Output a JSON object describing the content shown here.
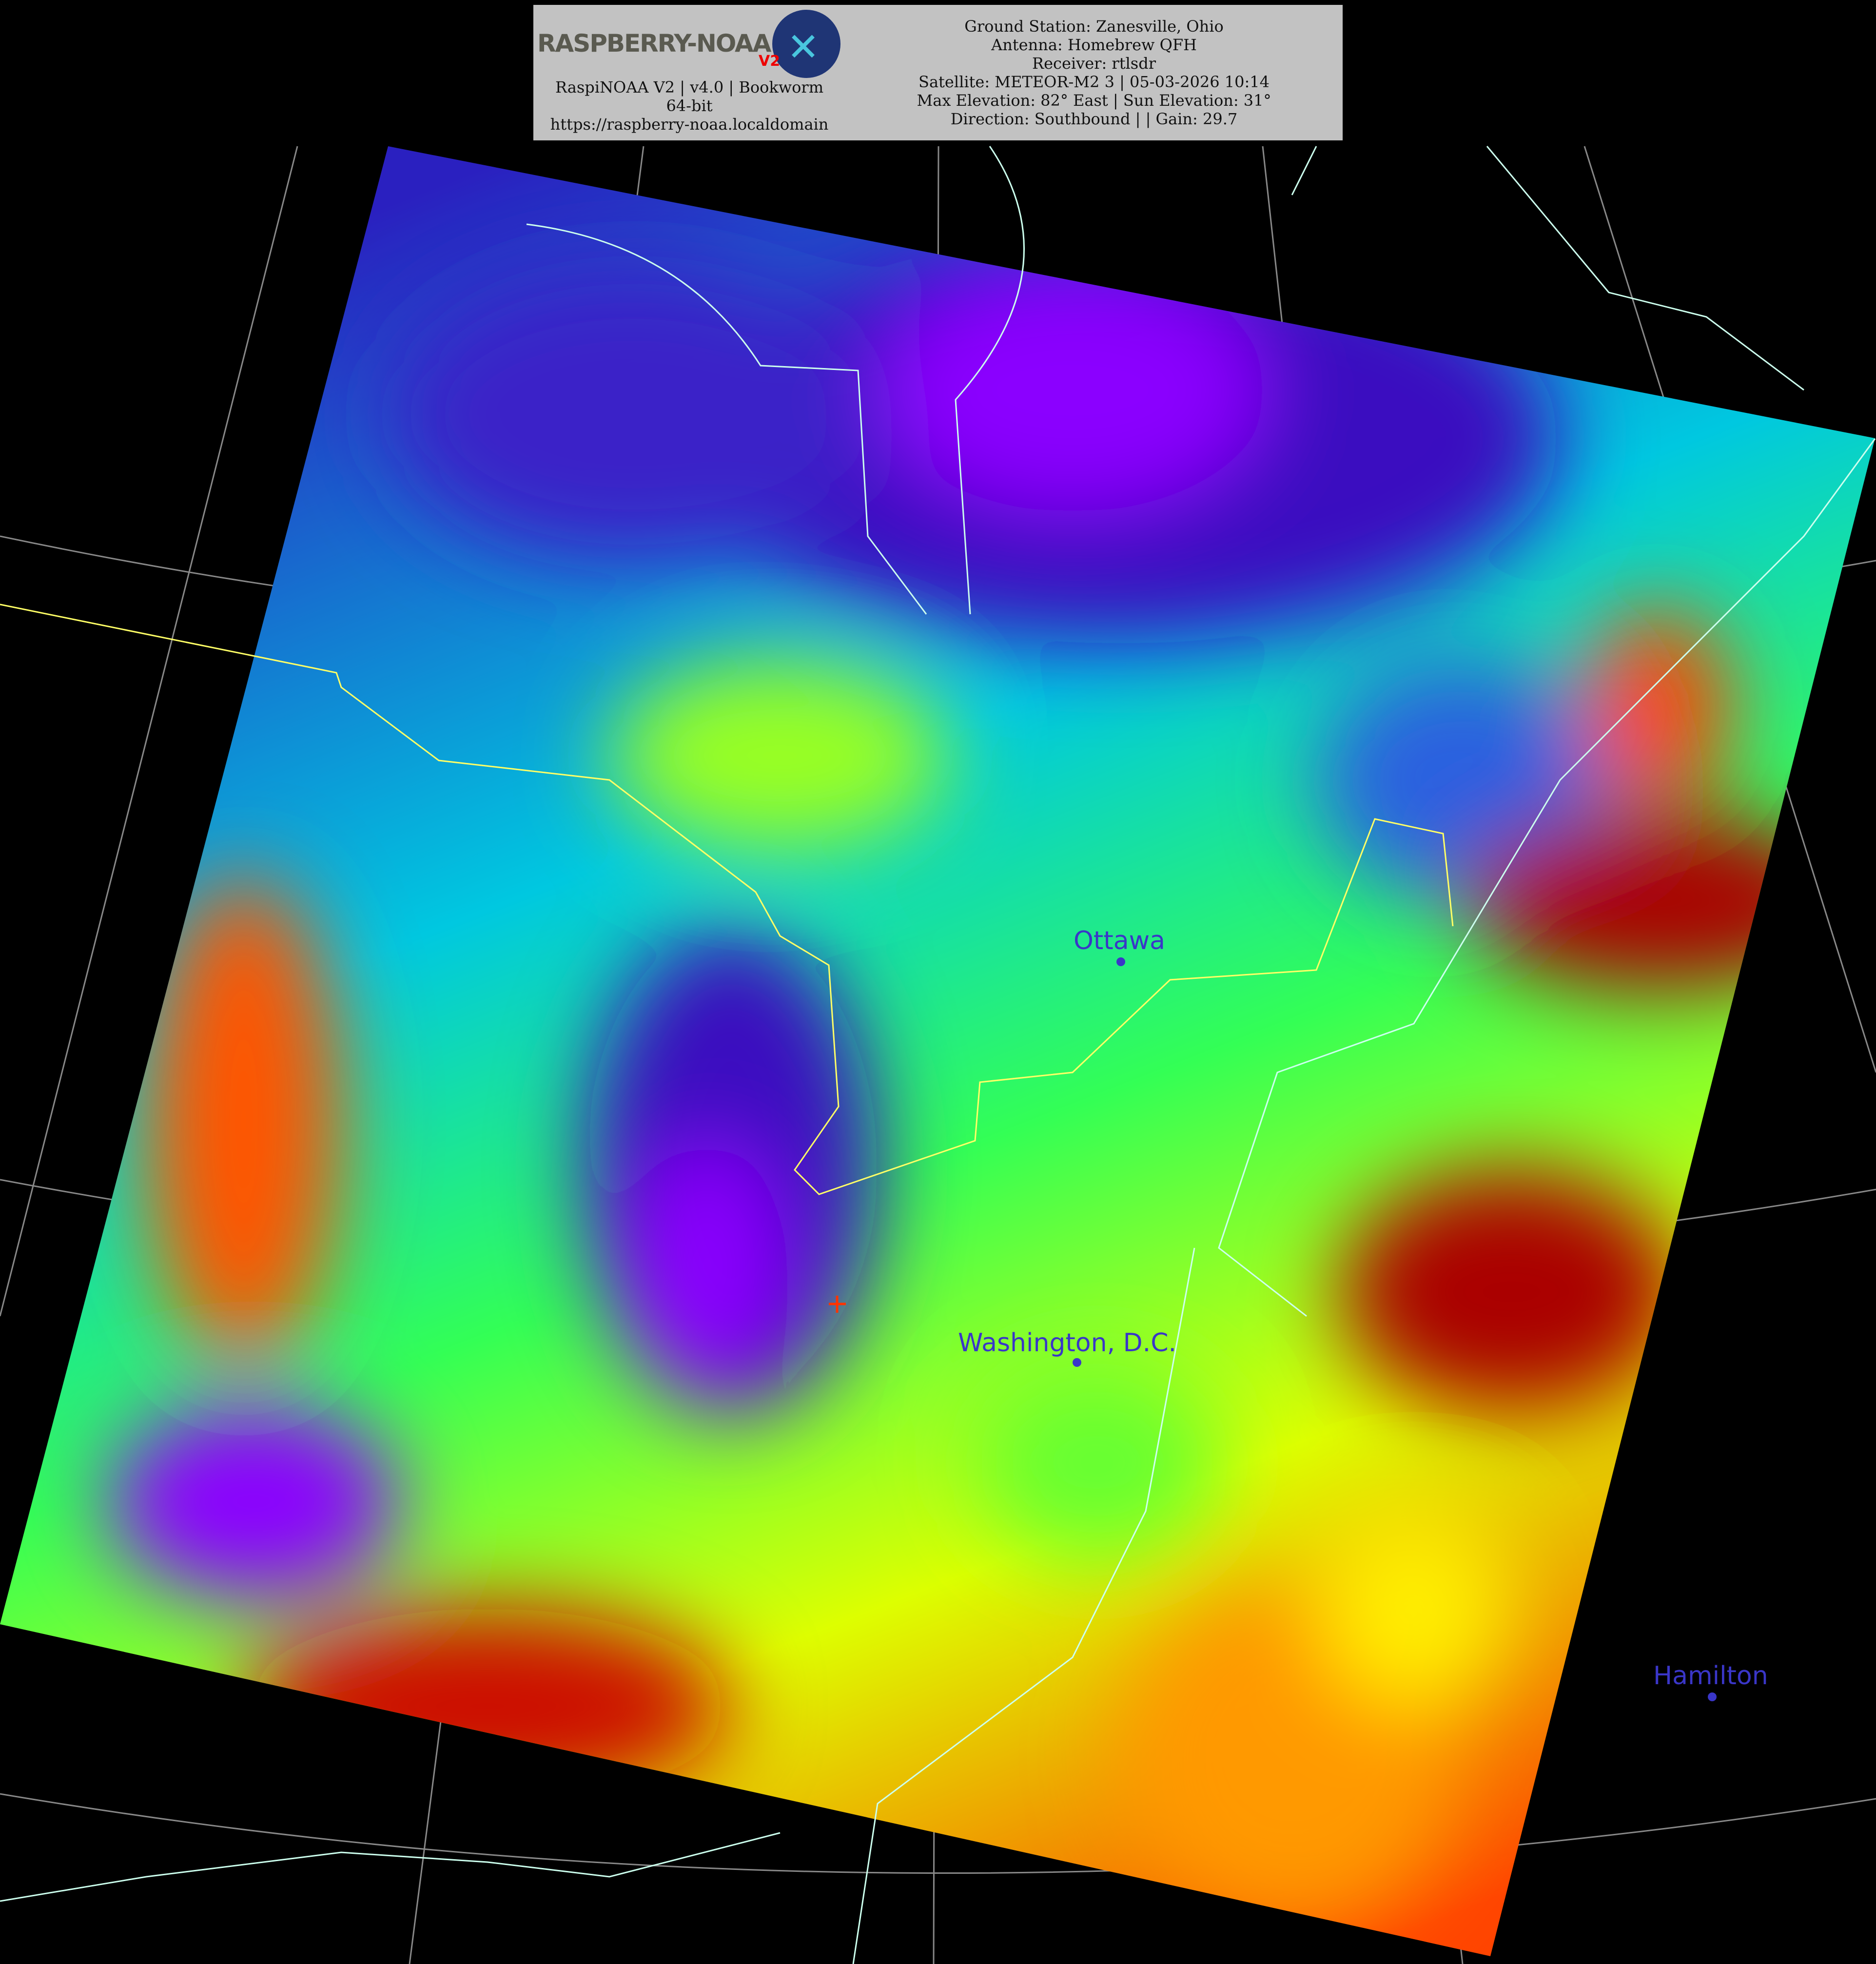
{
  "header": {
    "logo_text": "RASPBERRY-NOAA",
    "logo_badge": "V2",
    "app_line": "RaspiNOAA V2 | v4.0 | Bookworm 64-bit",
    "url": "https://raspberry-noaa.localdomain",
    "ground_station": "Ground Station: Zanesville, Ohio",
    "antenna": "Antenna: Homebrew QFH",
    "receiver": "Receiver: rtlsdr",
    "satellite": "Satellite: METEOR-M2 3 | 05-03-2026 10:14",
    "elevation": "Max Elevation: 82° East | Sun Elevation: 31°",
    "direction": "Direction: Southbound | | Gain: 29.7"
  },
  "map": {
    "palette": [
      "#8b00ff",
      "#3a10c0",
      "#1e90ff",
      "#00e5e5",
      "#00ff66",
      "#ccff00",
      "#ffff00",
      "#ff6600",
      "#cc0000",
      "#8b0000"
    ],
    "border_color": "#ffff66",
    "coast_color": "#ccffee",
    "cities": [
      {
        "name": "Ottawa"
      },
      {
        "name": "Washington, D.C."
      },
      {
        "name": "Hamilton"
      }
    ]
  }
}
